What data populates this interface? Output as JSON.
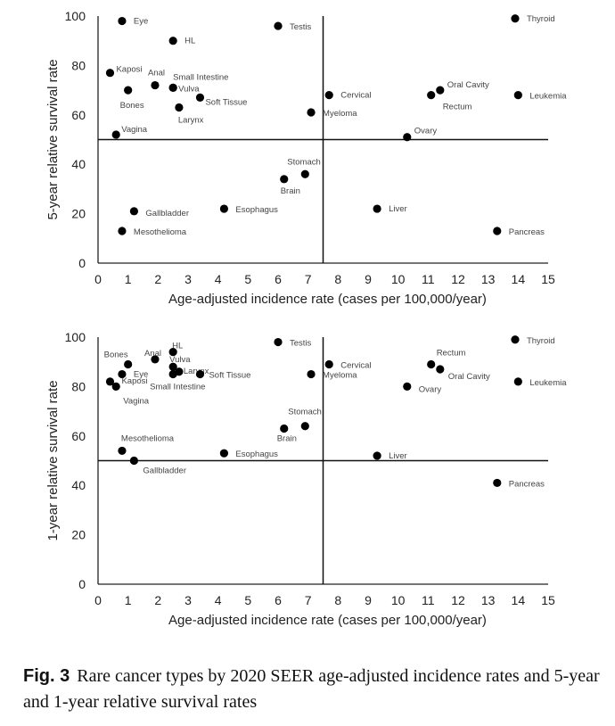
{
  "chart_data": [
    {
      "type": "scatter",
      "xlabel": "Age-adjusted incidence rate (cases per 100,000/year)",
      "ylabel": "5-year relative survival rate",
      "xlim": [
        0,
        15
      ],
      "ylim": [
        0,
        100
      ],
      "xticks": [
        "0",
        "1",
        "2",
        "3",
        "4",
        "5",
        "6",
        "7",
        "8",
        "9",
        "10",
        "11",
        "12",
        "13",
        "14",
        "15"
      ],
      "yticks": [
        "0",
        "20",
        "40",
        "60",
        "80",
        "100"
      ],
      "reference_lines": {
        "x": 7.5,
        "y": 50
      },
      "marker_color": "#000000",
      "points": [
        {
          "label": "Eye",
          "x": 0.8,
          "y": 98
        },
        {
          "label": "HL",
          "x": 2.5,
          "y": 90
        },
        {
          "label": "Testis",
          "x": 6.0,
          "y": 96
        },
        {
          "label": "Thyroid",
          "x": 13.9,
          "y": 99
        },
        {
          "label": "Kaposi",
          "x": 0.4,
          "y": 77
        },
        {
          "label": "Anal",
          "x": 1.9,
          "y": 72
        },
        {
          "label": "Small Intestine",
          "x": 2.5,
          "y": 71
        },
        {
          "label": "Vulva",
          "x": 2.5,
          "y": 71
        },
        {
          "label": "Bones",
          "x": 1.0,
          "y": 70
        },
        {
          "label": "Soft Tissue",
          "x": 3.4,
          "y": 67
        },
        {
          "label": "Larynx",
          "x": 2.7,
          "y": 63
        },
        {
          "label": "Cervical",
          "x": 7.7,
          "y": 68
        },
        {
          "label": "Oral Cavity",
          "x": 11.4,
          "y": 70
        },
        {
          "label": "Rectum",
          "x": 11.1,
          "y": 68
        },
        {
          "label": "Leukemia",
          "x": 14.0,
          "y": 68
        },
        {
          "label": "Myeloma",
          "x": 7.1,
          "y": 61
        },
        {
          "label": "Vagina",
          "x": 0.6,
          "y": 52
        },
        {
          "label": "Ovary",
          "x": 10.3,
          "y": 51
        },
        {
          "label": "Stomach",
          "x": 6.9,
          "y": 36
        },
        {
          "label": "Brain",
          "x": 6.2,
          "y": 34
        },
        {
          "label": "Gallbladder",
          "x": 1.2,
          "y": 21
        },
        {
          "label": "Esophagus",
          "x": 4.2,
          "y": 22
        },
        {
          "label": "Liver",
          "x": 9.3,
          "y": 22
        },
        {
          "label": "Mesothelioma",
          "x": 0.8,
          "y": 13
        },
        {
          "label": "Pancreas",
          "x": 13.3,
          "y": 13
        }
      ]
    },
    {
      "type": "scatter",
      "xlabel": "Age-adjusted incidence rate (cases per 100,000/year)",
      "ylabel": "1-year relative survival rate",
      "xlim": [
        0,
        15
      ],
      "ylim": [
        0,
        100
      ],
      "xticks": [
        "0",
        "1",
        "2",
        "3",
        "4",
        "5",
        "6",
        "7",
        "8",
        "9",
        "10",
        "11",
        "12",
        "13",
        "14",
        "15"
      ],
      "yticks": [
        "0",
        "20",
        "40",
        "60",
        "80",
        "100"
      ],
      "reference_lines": {
        "x": 7.5,
        "y": 50
      },
      "marker_color": "#000000",
      "points": [
        {
          "label": "Thyroid",
          "x": 13.9,
          "y": 99
        },
        {
          "label": "Testis",
          "x": 6.0,
          "y": 98
        },
        {
          "label": "HL",
          "x": 2.5,
          "y": 94
        },
        {
          "label": "Anal",
          "x": 1.9,
          "y": 91
        },
        {
          "label": "Bones",
          "x": 1.0,
          "y": 89
        },
        {
          "label": "Vulva",
          "x": 2.5,
          "y": 88
        },
        {
          "label": "Larynx",
          "x": 2.7,
          "y": 86
        },
        {
          "label": "Small Intestine",
          "x": 2.5,
          "y": 85
        },
        {
          "label": "Eye",
          "x": 0.8,
          "y": 85
        },
        {
          "label": "Soft Tissue",
          "x": 3.4,
          "y": 85
        },
        {
          "label": "Kaposi",
          "x": 0.4,
          "y": 82
        },
        {
          "label": "Vagina",
          "x": 0.6,
          "y": 80
        },
        {
          "label": "Rectum",
          "x": 11.1,
          "y": 89
        },
        {
          "label": "Cervical",
          "x": 7.7,
          "y": 89
        },
        {
          "label": "Oral Cavity",
          "x": 11.4,
          "y": 87
        },
        {
          "label": "Myeloma",
          "x": 7.1,
          "y": 85
        },
        {
          "label": "Leukemia",
          "x": 14.0,
          "y": 82
        },
        {
          "label": "Ovary",
          "x": 10.3,
          "y": 80
        },
        {
          "label": "Stomach",
          "x": 6.9,
          "y": 64
        },
        {
          "label": "Brain",
          "x": 6.2,
          "y": 63
        },
        {
          "label": "Mesothelioma",
          "x": 0.8,
          "y": 54
        },
        {
          "label": "Esophagus",
          "x": 4.2,
          "y": 53
        },
        {
          "label": "Liver",
          "x": 9.3,
          "y": 52
        },
        {
          "label": "Gallbladder",
          "x": 1.2,
          "y": 50
        },
        {
          "label": "Pancreas",
          "x": 13.3,
          "y": 41
        }
      ]
    }
  ],
  "caption": {
    "number": "Fig. 3",
    "text": "Rare cancer types by 2020 SEER age-adjusted incidence rates and 5-year and 1-year relative survival rates"
  }
}
